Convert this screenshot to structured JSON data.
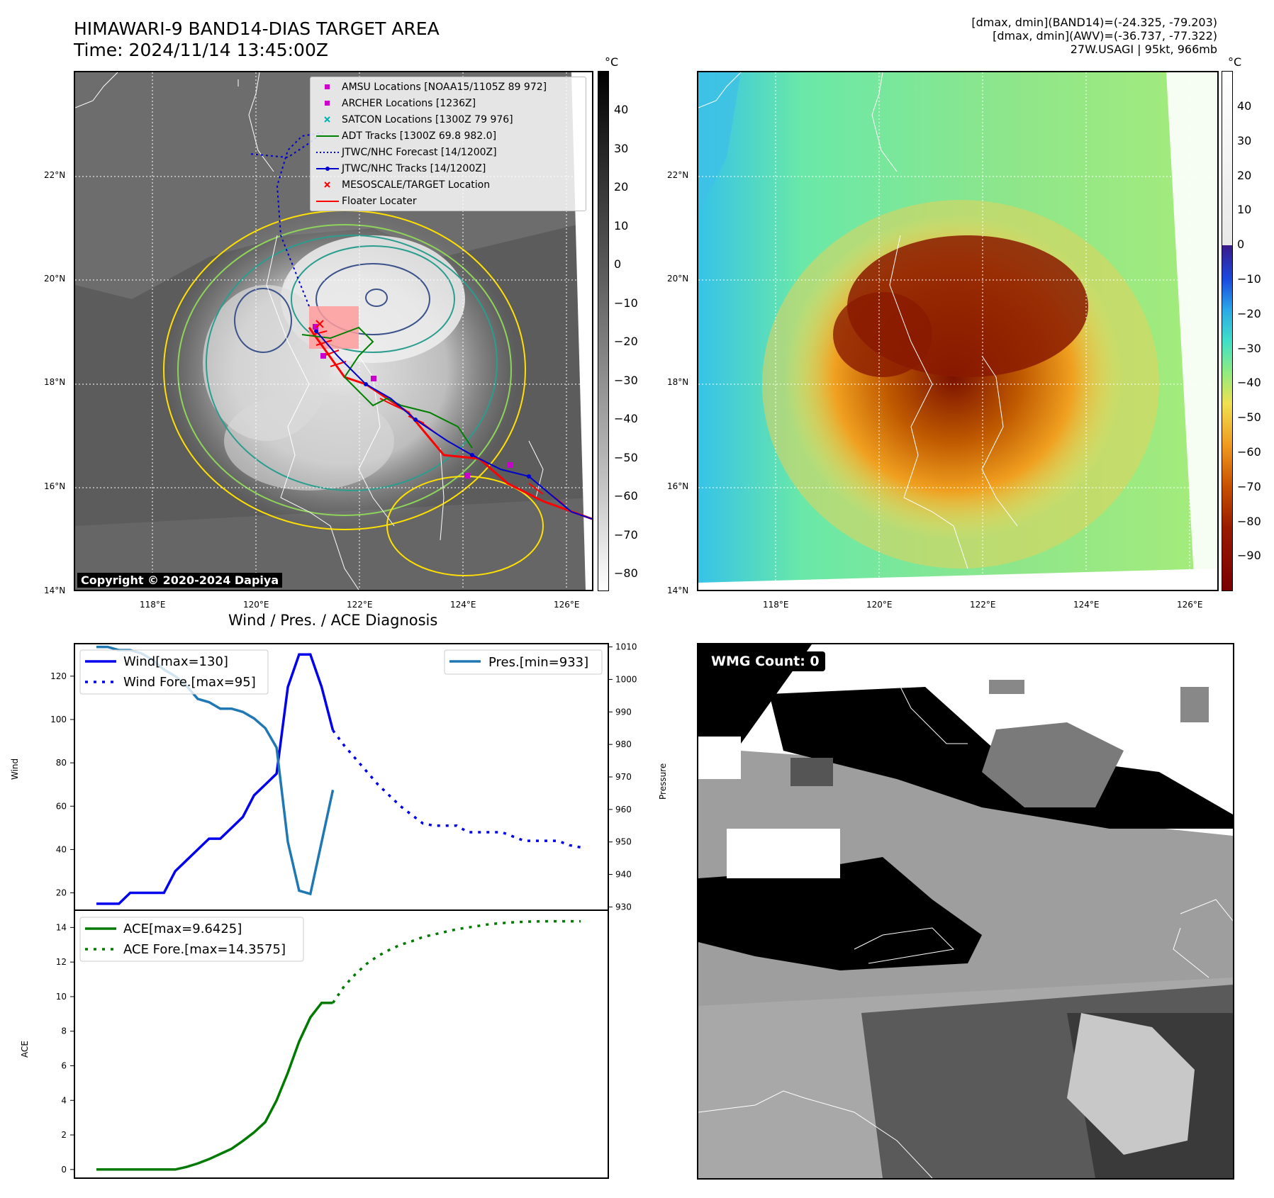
{
  "header": {
    "title": "HIMAWARI-9 BAND14-DIAS TARGET AREA",
    "time": "Time: 2024/11/14 13:45:00Z",
    "stats_line1": "[dmax, dmin](BAND14)=(-24.325, -79.203)",
    "stats_line2": "[dmax, dmin](AWV)=(-36.737, -77.322)",
    "stats_line3": "27W.USAGI | 95kt, 966mb"
  },
  "map": {
    "lat_labels": [
      "22°N",
      "20°N",
      "18°N",
      "16°N",
      "14°N"
    ],
    "lon_labels": [
      "118°E",
      "120°E",
      "122°E",
      "124°E",
      "126°E"
    ],
    "unit": "°C",
    "copyright": "Copyright © 2020-2024 Dapiya"
  },
  "ir_colorbar": {
    "ticks": [
      "40",
      "30",
      "20",
      "10",
      "0",
      "−10",
      "−20",
      "−30",
      "−40",
      "−50",
      "−60",
      "−70",
      "−80"
    ]
  },
  "awv_colorbar": {
    "ticks": [
      "40",
      "30",
      "20",
      "10",
      "0",
      "−10",
      "−20",
      "−30",
      "−40",
      "−50",
      "−60",
      "−70",
      "−80",
      "−90"
    ]
  },
  "legend": {
    "items": [
      "AMSU Locations [NOAA15/1105Z 89 972]",
      "ARCHER Locations [1236Z]",
      "SATCON Locations [1300Z 79 976]",
      "ADT Tracks [1300Z 69.8 982.0]",
      "JTWC/NHC Forecast [14/1200Z]",
      "JTWC/NHC Tracks [14/1200Z]",
      "MESOSCALE/TARGET Location",
      "Floater Locater"
    ]
  },
  "diagnosis": {
    "title": "Wind / Pres. / ACE Diagnosis",
    "wind_axis_label": "Wind",
    "pressure_axis_label": "Pressure",
    "ace_axis_label": "ACE",
    "legend_wind": "Wind[max=130]",
    "legend_wind_fore": "Wind Fore.[max=95]",
    "legend_pres": "Pres.[min=933]",
    "legend_ace": "ACE[max=9.6425]",
    "legend_ace_fore": "ACE Fore.[max=14.3575]"
  },
  "wmg": {
    "label": "WMG Count: 0"
  },
  "colors": {
    "wind": "#0000ee",
    "pressure": "#1f77b4",
    "ace": "#007a00",
    "track_jtwc": "#0000cc",
    "floater": "#ff0000",
    "adt": "#008000",
    "amsu": "#cc00cc",
    "satcon": "#00b0b0"
  },
  "chart_data": [
    {
      "type": "line",
      "title": "Wind / Pres. / ACE Diagnosis",
      "x": [
        0,
        1,
        2,
        3,
        4,
        5,
        6,
        7,
        8,
        9,
        10,
        11,
        12,
        13,
        14,
        15,
        16,
        17,
        18,
        19,
        20,
        21
      ],
      "series": [
        {
          "name": "Wind[max=130]",
          "axis": "left",
          "values": [
            15,
            15,
            15,
            20,
            20,
            20,
            20,
            30,
            35,
            40,
            45,
            45,
            50,
            55,
            65,
            70,
            75,
            115,
            130,
            130,
            115,
            95
          ]
        }
      ],
      "ylabel": "Wind",
      "ylim": [
        12,
        135
      ]
    },
    {
      "type": "line",
      "x": [
        21,
        22,
        23,
        24,
        25,
        26,
        27,
        28,
        29,
        30,
        31,
        32,
        33,
        34,
        35,
        36,
        37,
        38,
        39,
        40,
        41,
        42,
        43
      ],
      "series": [
        {
          "name": "Wind Fore.[max=95]",
          "values": [
            95,
            88,
            82,
            76,
            70,
            65,
            60,
            56,
            52,
            51,
            51,
            51,
            48,
            48,
            48,
            48,
            46,
            44,
            44,
            44,
            44,
            42,
            41
          ]
        }
      ],
      "ylim": [
        12,
        135
      ]
    },
    {
      "type": "line",
      "x": [
        0,
        1,
        2,
        3,
        4,
        5,
        6,
        7,
        8,
        9,
        10,
        11,
        12,
        13,
        14,
        15,
        16,
        17,
        18,
        19,
        20,
        21
      ],
      "series": [
        {
          "name": "Pres.[min=933]",
          "axis": "right",
          "values": [
            1010,
            1010,
            1009,
            1009,
            1008,
            1006,
            1003,
            1001,
            998,
            994,
            993,
            991,
            991,
            990,
            988,
            985,
            979,
            950,
            935,
            934,
            950,
            966
          ]
        }
      ],
      "ylabel": "Pressure",
      "ylim": [
        929,
        1011
      ]
    },
    {
      "type": "line",
      "x": [
        0,
        1,
        2,
        3,
        4,
        5,
        6,
        7,
        8,
        9,
        10,
        11,
        12,
        13,
        14,
        15,
        16,
        17,
        18,
        19,
        20,
        21
      ],
      "series": [
        {
          "name": "ACE[max=9.6425]",
          "values": [
            0,
            0,
            0,
            0,
            0,
            0,
            0,
            0,
            0.15,
            0.35,
            0.6,
            0.9,
            1.2,
            1.65,
            2.15,
            2.75,
            4.0,
            5.6,
            7.4,
            8.8,
            9.64,
            9.64
          ]
        }
      ],
      "ylabel": "ACE",
      "ylim": [
        -0.5,
        15
      ]
    },
    {
      "type": "line",
      "x": [
        21,
        22,
        23,
        24,
        25,
        26,
        27,
        28,
        29,
        30,
        31,
        32,
        33,
        34,
        35,
        36,
        37,
        38,
        39,
        40,
        41,
        42,
        43
      ],
      "series": [
        {
          "name": "ACE Fore.[max=14.3575]",
          "values": [
            9.64,
            10.6,
            11.3,
            11.9,
            12.35,
            12.7,
            13.0,
            13.2,
            13.45,
            13.6,
            13.75,
            13.9,
            14.0,
            14.1,
            14.2,
            14.25,
            14.3,
            14.33,
            14.35,
            14.3575,
            14.3575,
            14.3575,
            14.3575
          ]
        }
      ],
      "ylim": [
        -0.5,
        15
      ]
    }
  ]
}
